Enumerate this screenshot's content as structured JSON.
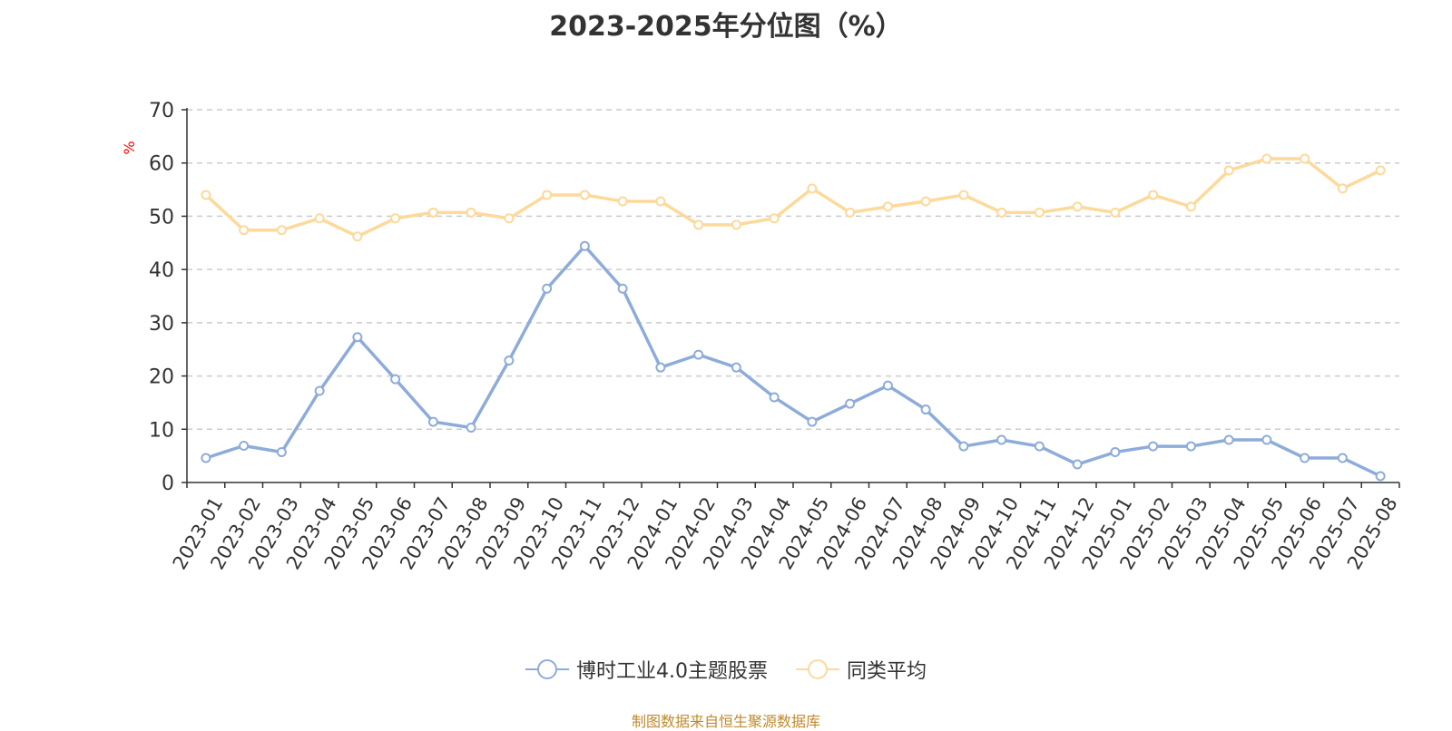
{
  "colors": {
    "series_1": "#8eacd9",
    "series_2": "#fdd99a",
    "axis": "#333333",
    "grid": "#cccccc",
    "unit": "#ff0000",
    "source": "#c08a2e"
  },
  "chart_data": {
    "type": "line",
    "title": "2023-2025年分位图（%）",
    "ylabel": "%",
    "xlabel": "",
    "ylim": [
      0,
      70
    ],
    "yticks": [
      0,
      10,
      20,
      30,
      40,
      50,
      60,
      70
    ],
    "grid": true,
    "legend_position": "bottom-center",
    "categories": [
      "2023-01",
      "2023-02",
      "2023-03",
      "2023-04",
      "2023-05",
      "2023-06",
      "2023-07",
      "2023-08",
      "2023-09",
      "2023-10",
      "2023-11",
      "2023-12",
      "2024-01",
      "2024-02",
      "2024-03",
      "2024-04",
      "2024-05",
      "2024-06",
      "2024-07",
      "2024-08",
      "2024-09",
      "2024-10",
      "2024-11",
      "2024-12",
      "2025-01",
      "2025-02",
      "2025-03",
      "2025-04",
      "2025-05",
      "2025-06",
      "2025-07",
      "2025-08"
    ],
    "series": [
      {
        "name": "博时工业4.0主题股票",
        "values": [
          4.6,
          6.9,
          5.7,
          17.2,
          27.3,
          19.4,
          11.4,
          10.3,
          22.9,
          36.4,
          44.4,
          36.4,
          21.6,
          24.0,
          21.6,
          16.0,
          11.4,
          14.8,
          18.2,
          13.7,
          6.8,
          8.0,
          6.8,
          3.4,
          5.7,
          6.8,
          6.8,
          8.0,
          8.0,
          4.6,
          4.6,
          1.2
        ]
      },
      {
        "name": "同类平均",
        "values": [
          54.0,
          47.4,
          47.4,
          49.6,
          46.2,
          49.6,
          50.7,
          50.7,
          49.6,
          54.0,
          54.0,
          52.8,
          52.8,
          48.4,
          48.4,
          49.6,
          55.2,
          50.7,
          51.8,
          52.8,
          54.0,
          50.7,
          50.7,
          51.8,
          50.7,
          54.0,
          51.8,
          58.6,
          60.8,
          60.8,
          55.2,
          58.6
        ]
      }
    ]
  },
  "source_note": "制图数据来自恒生聚源数据库"
}
